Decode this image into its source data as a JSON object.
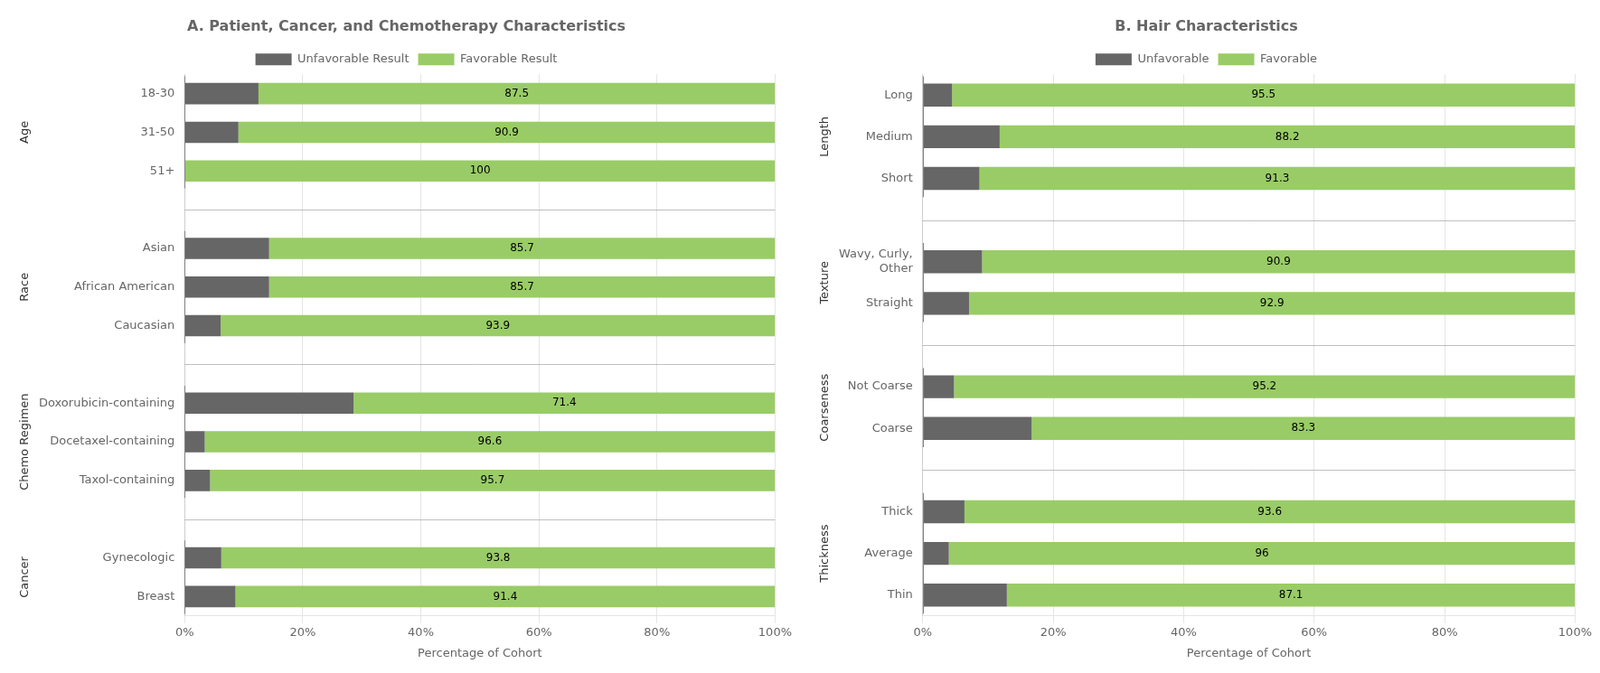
{
  "chart_data": [
    {
      "type": "bar",
      "orientation": "horizontal",
      "stacked": true,
      "title": "A. Patient, Cancer, and Chemotherapy Characteristics",
      "categories": [
        "18-30",
        "31-50",
        "51+",
        "Asian",
        "African American",
        "Caucasian",
        "Doxorubicin-containing",
        "Docetaxel-containing",
        "Taxol-containing",
        "Gynecologic",
        "Breast"
      ],
      "groups": [
        {
          "name": "Age",
          "categories": [
            "18-30",
            "31-50",
            "51+"
          ]
        },
        {
          "name": "Race",
          "categories": [
            "Asian",
            "African American",
            "Caucasian"
          ]
        },
        {
          "name": "Chemo Regimen",
          "categories": [
            "Doxorubicin-containing",
            "Docetaxel-containing",
            "Taxol-containing"
          ]
        },
        {
          "name": "Cancer",
          "categories": [
            "Gynecologic",
            "Breast"
          ]
        }
      ],
      "series": [
        {
          "name": "Unfavorable Result",
          "color": "#666666",
          "values": [
            12.5,
            9.1,
            0.0,
            14.3,
            14.3,
            6.1,
            28.6,
            3.4,
            4.3,
            6.2,
            8.6
          ]
        },
        {
          "name": "Favorable Result",
          "color": "#99cc66",
          "data_labels": true,
          "values": [
            87.5,
            90.9,
            100.0,
            85.7,
            85.7,
            93.9,
            71.4,
            96.6,
            95.7,
            93.8,
            91.4
          ]
        }
      ],
      "xlabel": "Percentage of Cohort",
      "xlim": [
        0,
        100
      ],
      "xticks": [
        {
          "value": 0,
          "label": "0%"
        },
        {
          "value": 20,
          "label": "20%"
        },
        {
          "value": 40,
          "label": "40%"
        },
        {
          "value": 60,
          "label": "60%"
        },
        {
          "value": 80,
          "label": "80%"
        },
        {
          "value": 100,
          "label": "100%"
        }
      ],
      "grid": "x",
      "legend": "top"
    },
    {
      "type": "bar",
      "orientation": "horizontal",
      "stacked": true,
      "title": "B. Hair Characteristics",
      "categories": [
        "Long",
        "Medium",
        "Short",
        "Wavy, Curly,\nOther",
        "Straight",
        "Not Coarse",
        "Coarse",
        "Thick",
        "Average",
        "Thin"
      ],
      "groups": [
        {
          "name": "Length",
          "categories": [
            "Long",
            "Medium",
            "Short"
          ]
        },
        {
          "name": "Texture",
          "categories": [
            "Wavy, Curly,\nOther",
            "Straight"
          ]
        },
        {
          "name": "Coarseness",
          "categories": [
            "Not Coarse",
            "Coarse"
          ]
        },
        {
          "name": "Thickness",
          "categories": [
            "Thick",
            "Average",
            "Thin"
          ]
        }
      ],
      "series": [
        {
          "name": "Unfavorable",
          "color": "#666666",
          "values": [
            4.5,
            11.8,
            8.7,
            9.1,
            7.1,
            4.8,
            16.7,
            6.4,
            4.0,
            12.9
          ]
        },
        {
          "name": "Favorable",
          "color": "#99cc66",
          "data_labels": true,
          "values": [
            95.5,
            88.2,
            91.3,
            90.9,
            92.9,
            95.2,
            83.3,
            93.6,
            96.0,
            87.1
          ]
        }
      ],
      "xlabel": "Percentage of Cohort",
      "xlim": [
        0,
        100
      ],
      "xticks": [
        {
          "value": 0,
          "label": "0%"
        },
        {
          "value": 20,
          "label": "20%"
        },
        {
          "value": 40,
          "label": "40%"
        },
        {
          "value": 60,
          "label": "60%"
        },
        {
          "value": 80,
          "label": "80%"
        },
        {
          "value": 100,
          "label": "100%"
        }
      ],
      "grid": "x",
      "legend": "top"
    }
  ]
}
